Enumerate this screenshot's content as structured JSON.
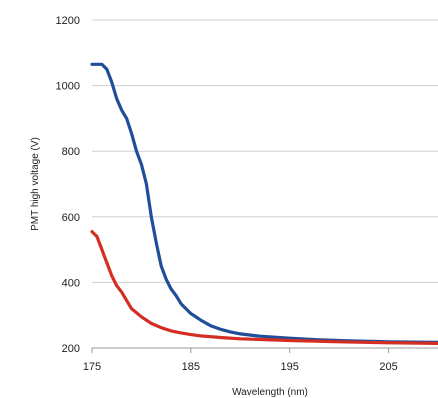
{
  "chart_data": {
    "type": "line",
    "title": "",
    "xlabel": "Wavelength (nm)",
    "ylabel": "PMT high voltage (V)",
    "xlim": [
      175,
      210
    ],
    "ylim": [
      200,
      1200
    ],
    "xticks": [
      175,
      185,
      195,
      205
    ],
    "yticks": [
      200,
      400,
      600,
      800,
      1000,
      1200
    ],
    "x_tick_labels": [
      "175",
      "185",
      "195",
      "205"
    ],
    "y_tick_labels": [
      "200",
      "400",
      "600",
      "800",
      "1000",
      "1200"
    ],
    "grid": "horizontal",
    "legend": "none",
    "series": [
      {
        "color": "#1f4e9a",
        "x": [
          175,
          176,
          176.5,
          177,
          177.5,
          178,
          178.5,
          179,
          179.5,
          180,
          180.5,
          181,
          181.5,
          182,
          182.5,
          183,
          183.5,
          184,
          185,
          186,
          187,
          188,
          189,
          190,
          192,
          195,
          198,
          201,
          205,
          210
        ],
        "y": [
          1065,
          1065,
          1050,
          1010,
          960,
          925,
          900,
          855,
          800,
          760,
          700,
          600,
          520,
          450,
          410,
          380,
          360,
          335,
          305,
          285,
          268,
          257,
          249,
          243,
          236,
          230,
          225,
          222,
          219,
          217
        ]
      },
      {
        "color": "#d42e23",
        "x": [
          175,
          175.5,
          176,
          176.5,
          177,
          177.5,
          178,
          178.5,
          179,
          180,
          181,
          182,
          183,
          184,
          185,
          186,
          188,
          190,
          195,
          200,
          205,
          210
        ],
        "y": [
          555,
          540,
          500,
          460,
          420,
          390,
          370,
          345,
          320,
          295,
          275,
          262,
          252,
          246,
          241,
          237,
          232,
          228,
          223,
          219,
          216,
          214
        ]
      }
    ]
  }
}
